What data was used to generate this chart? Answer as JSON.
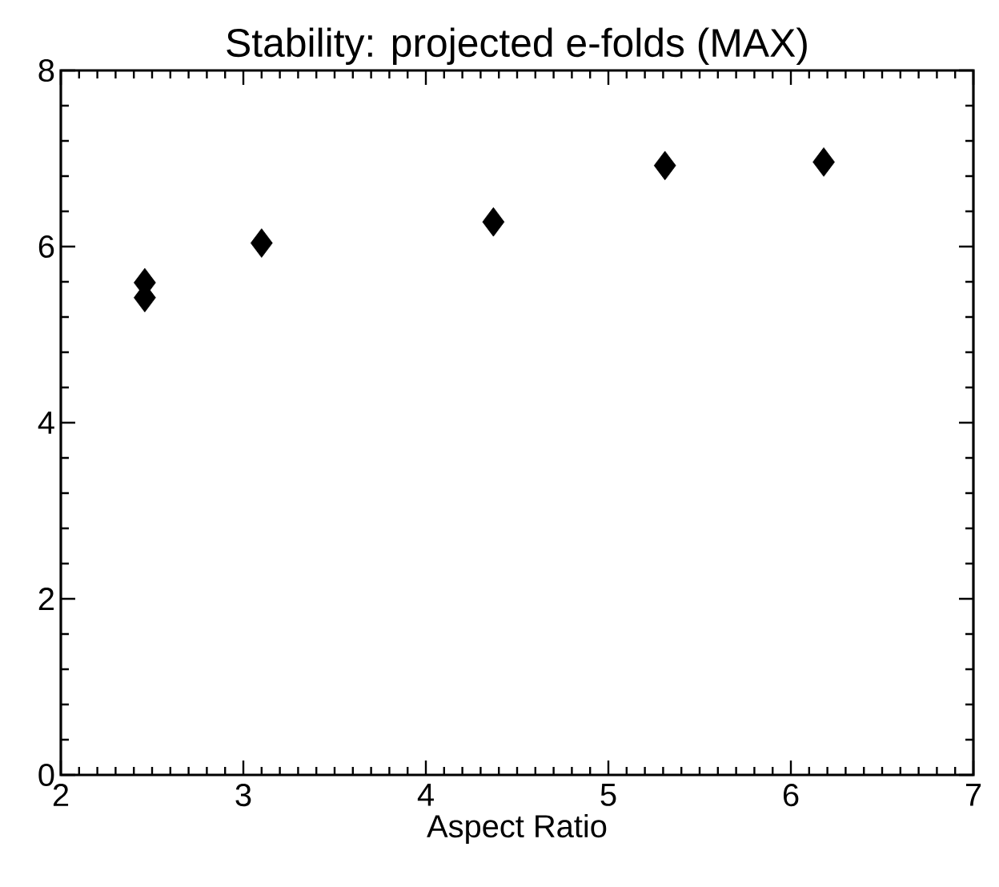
{
  "chart_data": {
    "type": "scatter",
    "title": "Stability: projected e-folds (MAX)",
    "xlabel": "Aspect Ratio",
    "x": [
      2.46,
      2.46,
      3.1,
      4.37,
      5.31,
      6.18
    ],
    "series": [
      {
        "color": "#000000",
        "values": [
          5.59,
          5.42,
          6.04,
          6.28,
          6.92,
          6.96
        ]
      }
    ],
    "marker": "diamond",
    "xlim": [
      2,
      7
    ],
    "ylim": [
      0,
      8
    ],
    "xticks": [
      2,
      3,
      4,
      5,
      6,
      7
    ],
    "yticks": [
      0,
      2,
      4,
      6,
      8
    ]
  }
}
